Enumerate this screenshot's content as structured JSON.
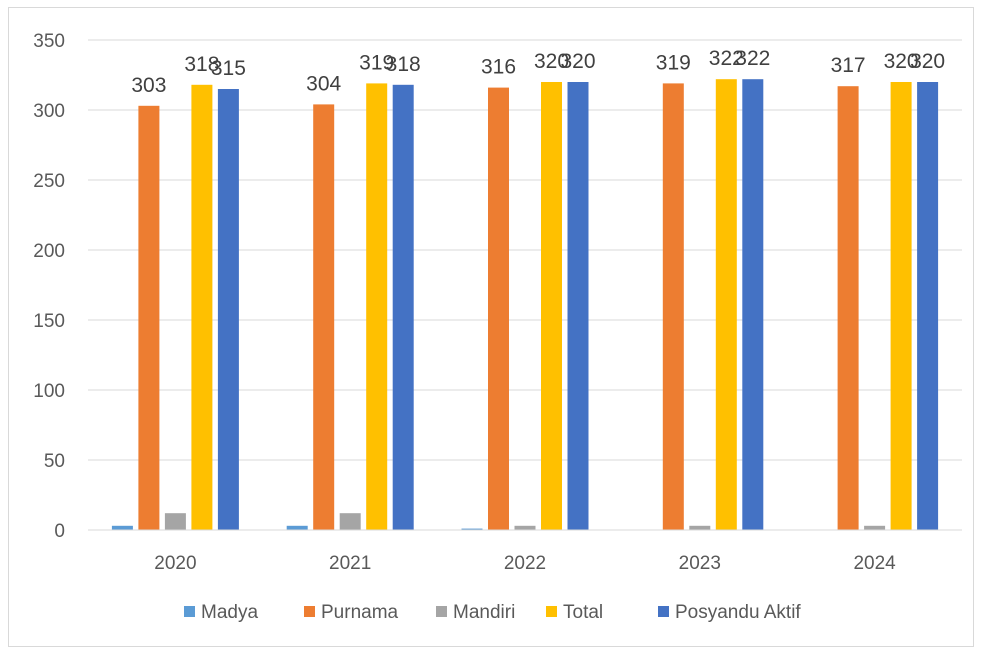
{
  "chart_data": {
    "type": "bar",
    "title": "",
    "xlabel": "",
    "ylabel": "",
    "ylim": [
      0,
      350
    ],
    "yticks": [
      0,
      50,
      100,
      150,
      200,
      250,
      300,
      350
    ],
    "grid": true,
    "legend_position": "bottom",
    "categories": [
      "2020",
      "2021",
      "2022",
      "2023",
      "2024"
    ],
    "series": [
      {
        "name": "Madya",
        "color": "#5b9bd5",
        "values": [
          3,
          3,
          1,
          0,
          0
        ],
        "show_labels": false
      },
      {
        "name": "Purnama",
        "color": "#ed7d31",
        "values": [
          303,
          304,
          316,
          319,
          317
        ],
        "show_labels": true
      },
      {
        "name": "Mandiri",
        "color": "#a5a5a5",
        "values": [
          12,
          12,
          3,
          3,
          3
        ],
        "show_labels": false
      },
      {
        "name": "Total",
        "color": "#ffc000",
        "values": [
          318,
          319,
          320,
          322,
          320
        ],
        "show_labels": true
      },
      {
        "name": "Posyandu Aktif",
        "color": "#4472c4",
        "values": [
          315,
          318,
          320,
          322,
          320
        ],
        "show_labels": true
      }
    ]
  }
}
